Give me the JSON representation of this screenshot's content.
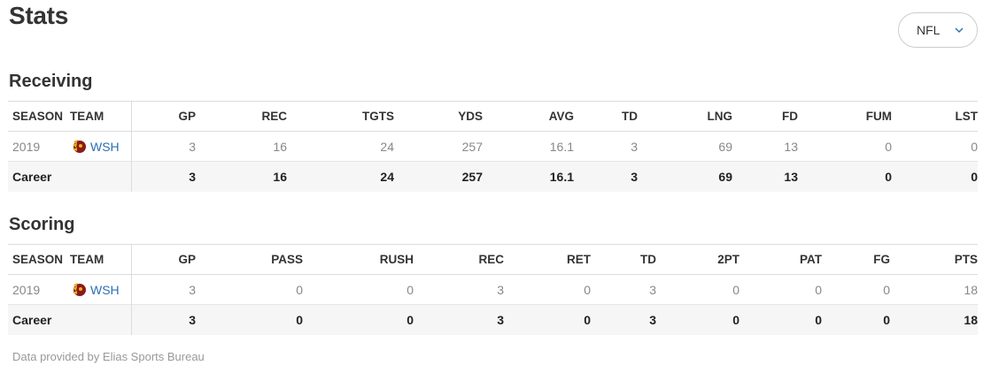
{
  "page": {
    "title": "Stats"
  },
  "league_select": {
    "value": "NFL",
    "icon": "chevron-down-icon"
  },
  "receiving": {
    "title": "Receiving",
    "headers": [
      "SEASON",
      "TEAM",
      "GP",
      "REC",
      "TGTS",
      "YDS",
      "AVG",
      "TD",
      "LNG",
      "FD",
      "FUM",
      "LST"
    ],
    "rows": [
      {
        "season": "2019",
        "team": "WSH",
        "values": [
          "3",
          "16",
          "24",
          "257",
          "16.1",
          "3",
          "69",
          "13",
          "0",
          "0"
        ]
      }
    ],
    "career": {
      "label": "Career",
      "values": [
        "3",
        "16",
        "24",
        "257",
        "16.1",
        "3",
        "69",
        "13",
        "0",
        "0"
      ]
    }
  },
  "scoring": {
    "title": "Scoring",
    "headers": [
      "SEASON",
      "TEAM",
      "GP",
      "PASS",
      "RUSH",
      "REC",
      "RET",
      "TD",
      "2PT",
      "PAT",
      "FG",
      "PTS"
    ],
    "rows": [
      {
        "season": "2019",
        "team": "WSH",
        "values": [
          "3",
          "0",
          "0",
          "3",
          "0",
          "3",
          "0",
          "0",
          "0",
          "18"
        ]
      }
    ],
    "career": {
      "label": "Career",
      "values": [
        "3",
        "0",
        "0",
        "3",
        "0",
        "3",
        "0",
        "0",
        "0",
        "18"
      ]
    }
  },
  "footnote": "Data provided by Elias Sports Bureau",
  "colors": {
    "link": "#2a6fb5",
    "logo_red": "#8b1a1a",
    "logo_gold": "#e8b21c"
  }
}
